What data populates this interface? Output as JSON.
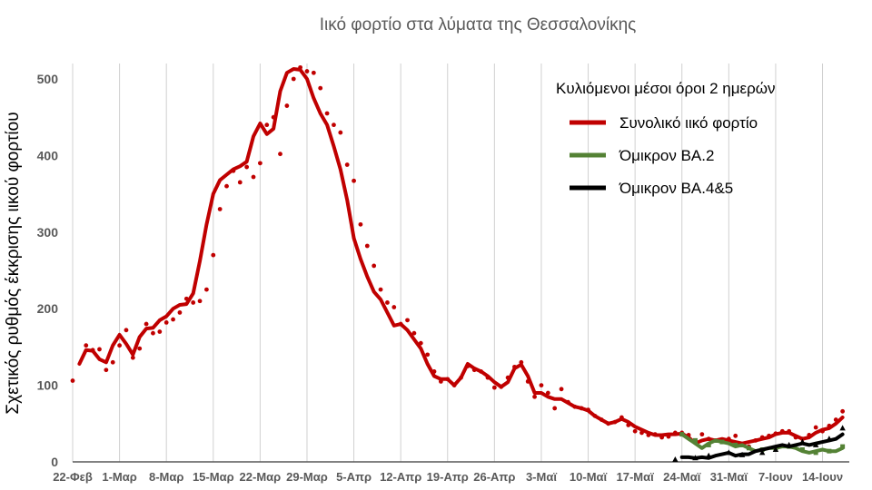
{
  "chart_data": {
    "type": "line",
    "title": "Ιικό φορτίο στα λύματα της Θεσσαλονίκης",
    "ylabel": "Σχετικός ρυθμός έκκρισης ιικού φορτίου",
    "xlabel": "",
    "ylim": [
      0,
      500
    ],
    "yticks": [
      0,
      100,
      200,
      300,
      400,
      500
    ],
    "xlim": [
      "2022-02-22",
      "2022-06-18"
    ],
    "grid": "vertical",
    "xticks": [
      {
        "date": "2022-02-22",
        "label": "22-Φεβ"
      },
      {
        "date": "2022-03-01",
        "label": "1-Μαρ"
      },
      {
        "date": "2022-03-08",
        "label": "8-Μαρ"
      },
      {
        "date": "2022-03-15",
        "label": "15-Μαρ"
      },
      {
        "date": "2022-03-22",
        "label": "22-Μαρ"
      },
      {
        "date": "2022-03-29",
        "label": "29-Μαρ"
      },
      {
        "date": "2022-04-05",
        "label": "5-Απρ"
      },
      {
        "date": "2022-04-12",
        "label": "12-Απρ"
      },
      {
        "date": "2022-04-19",
        "label": "19-Απρ"
      },
      {
        "date": "2022-04-26",
        "label": "26-Απρ"
      },
      {
        "date": "2022-05-03",
        "label": "3-Μαϊ"
      },
      {
        "date": "2022-05-10",
        "label": "10-Μαϊ"
      },
      {
        "date": "2022-05-17",
        "label": "17-Μαϊ"
      },
      {
        "date": "2022-05-24",
        "label": "24-Μαϊ"
      },
      {
        "date": "2022-05-31",
        "label": "31-Μαϊ"
      },
      {
        "date": "2022-06-07",
        "label": "7-Ιουν"
      },
      {
        "date": "2022-06-14",
        "label": "14-Ιουν"
      }
    ],
    "legend_title": "Κυλιόμενοι μέσοι όροι 2 ημερών",
    "legend_position": "top-right",
    "series": [
      {
        "name": "Συνολικό ιικό φορτίο",
        "color": "#c00000",
        "dots_x": [
          "2022-02-22",
          "2022-02-24",
          "2022-02-25",
          "2022-02-26",
          "2022-02-27",
          "2022-02-28",
          "2022-03-01",
          "2022-03-02",
          "2022-03-03",
          "2022-03-04",
          "2022-03-05",
          "2022-03-06",
          "2022-03-07",
          "2022-03-08",
          "2022-03-09",
          "2022-03-10",
          "2022-03-11",
          "2022-03-12",
          "2022-03-13",
          "2022-03-14",
          "2022-03-15",
          "2022-03-16",
          "2022-03-17",
          "2022-03-18",
          "2022-03-19",
          "2022-03-20",
          "2022-03-21",
          "2022-03-22",
          "2022-03-23",
          "2022-03-24",
          "2022-03-25",
          "2022-03-26",
          "2022-03-27",
          "2022-03-28",
          "2022-03-29",
          "2022-03-30",
          "2022-03-31",
          "2022-04-01",
          "2022-04-02",
          "2022-04-03",
          "2022-04-04",
          "2022-04-05",
          "2022-04-06",
          "2022-04-07",
          "2022-04-08",
          "2022-04-09",
          "2022-04-10",
          "2022-04-11",
          "2022-04-12",
          "2022-04-13",
          "2022-04-14",
          "2022-04-15",
          "2022-04-16",
          "2022-04-17",
          "2022-04-18",
          "2022-04-19",
          "2022-04-20",
          "2022-04-21",
          "2022-04-22",
          "2022-04-23",
          "2022-04-24",
          "2022-04-25",
          "2022-04-26",
          "2022-04-27",
          "2022-04-28",
          "2022-04-29",
          "2022-04-30",
          "2022-05-01",
          "2022-05-02",
          "2022-05-03",
          "2022-05-04",
          "2022-05-05",
          "2022-05-06",
          "2022-05-07",
          "2022-05-08",
          "2022-05-09",
          "2022-05-10",
          "2022-05-11",
          "2022-05-12",
          "2022-05-13",
          "2022-05-14",
          "2022-05-15",
          "2022-05-16",
          "2022-05-17",
          "2022-05-18",
          "2022-05-19",
          "2022-05-20",
          "2022-05-21",
          "2022-05-22",
          "2022-05-23",
          "2022-05-24",
          "2022-05-25",
          "2022-05-26",
          "2022-05-27",
          "2022-05-28",
          "2022-05-29",
          "2022-05-30",
          "2022-05-31",
          "2022-06-01",
          "2022-06-02",
          "2022-06-03",
          "2022-06-04",
          "2022-06-05",
          "2022-06-06",
          "2022-06-07",
          "2022-06-08",
          "2022-06-09",
          "2022-06-10",
          "2022-06-11",
          "2022-06-12",
          "2022-06-13",
          "2022-06-14",
          "2022-06-15",
          "2022-06-16",
          "2022-06-17"
        ],
        "dots_y": [
          106,
          152,
          146,
          147,
          120,
          130,
          152,
          172,
          136,
          148,
          180,
          168,
          170,
          182,
          186,
          195,
          213,
          208,
          210,
          225,
          270,
          330,
          360,
          380,
          365,
          385,
          372,
          390,
          440,
          450,
          402,
          465,
          500,
          515,
          510,
          508,
          488,
          455,
          440,
          430,
          388,
          367,
          310,
          282,
          256,
          225,
          208,
          202,
          180,
          185,
          168,
          155,
          140,
          118,
          105,
          108,
          100,
          110,
          125,
          120,
          118,
          110,
          97,
          98,
          110,
          124,
          130,
          105,
          85,
          100,
          90,
          70,
          95,
          78,
          72,
          70,
          68,
          60,
          55,
          50,
          52,
          58,
          48,
          40,
          38,
          35,
          36,
          32,
          33,
          38,
          38,
          35,
          28,
          36,
          30,
          28,
          26,
          30,
          34,
          22,
          20,
          28,
          32,
          34,
          37,
          40,
          40,
          32,
          30,
          35,
          45,
          40,
          47,
          55,
          66
        ],
        "line_x": [
          "2022-02-23",
          "2022-02-24",
          "2022-02-25",
          "2022-02-26",
          "2022-02-27",
          "2022-02-28",
          "2022-03-01",
          "2022-03-02",
          "2022-03-03",
          "2022-03-04",
          "2022-03-05",
          "2022-03-06",
          "2022-03-07",
          "2022-03-08",
          "2022-03-09",
          "2022-03-10",
          "2022-03-11",
          "2022-03-12",
          "2022-03-13",
          "2022-03-14",
          "2022-03-15",
          "2022-03-16",
          "2022-03-17",
          "2022-03-18",
          "2022-03-19",
          "2022-03-20",
          "2022-03-21",
          "2022-03-22",
          "2022-03-23",
          "2022-03-24",
          "2022-03-25",
          "2022-03-26",
          "2022-03-27",
          "2022-03-28",
          "2022-03-29",
          "2022-03-30",
          "2022-03-31",
          "2022-04-01",
          "2022-04-02",
          "2022-04-03",
          "2022-04-04",
          "2022-04-05",
          "2022-04-06",
          "2022-04-07",
          "2022-04-08",
          "2022-04-09",
          "2022-04-10",
          "2022-04-11",
          "2022-04-12",
          "2022-04-13",
          "2022-04-14",
          "2022-04-15",
          "2022-04-16",
          "2022-04-17",
          "2022-04-18",
          "2022-04-19",
          "2022-04-20",
          "2022-04-21",
          "2022-04-22",
          "2022-04-23",
          "2022-04-24",
          "2022-04-25",
          "2022-04-26",
          "2022-04-27",
          "2022-04-28",
          "2022-04-29",
          "2022-04-30",
          "2022-05-01",
          "2022-05-02",
          "2022-05-03",
          "2022-05-04",
          "2022-05-05",
          "2022-05-06",
          "2022-05-07",
          "2022-05-08",
          "2022-05-09",
          "2022-05-10",
          "2022-05-11",
          "2022-05-12",
          "2022-05-13",
          "2022-05-14",
          "2022-05-15",
          "2022-05-16",
          "2022-05-17",
          "2022-05-18",
          "2022-05-19",
          "2022-05-20",
          "2022-05-21",
          "2022-05-22",
          "2022-05-23",
          "2022-05-24",
          "2022-05-25",
          "2022-05-26",
          "2022-05-27",
          "2022-05-28",
          "2022-05-29",
          "2022-05-30",
          "2022-05-31",
          "2022-06-01",
          "2022-06-02",
          "2022-06-03",
          "2022-06-04",
          "2022-06-05",
          "2022-06-06",
          "2022-06-07",
          "2022-06-08",
          "2022-06-09",
          "2022-06-10",
          "2022-06-11",
          "2022-06-12",
          "2022-06-13",
          "2022-06-14",
          "2022-06-15",
          "2022-06-16",
          "2022-06-17"
        ],
        "line_y": [
          128,
          146,
          145,
          134,
          130,
          152,
          166,
          154,
          140,
          163,
          174,
          175,
          185,
          190,
          200,
          205,
          206,
          220,
          262,
          310,
          350,
          368,
          375,
          382,
          386,
          392,
          425,
          442,
          428,
          435,
          484,
          508,
          513,
          512,
          500,
          475,
          455,
          440,
          412,
          382,
          342,
          292,
          265,
          242,
          222,
          212,
          195,
          178,
          180,
          172,
          160,
          148,
          128,
          112,
          108,
          108,
          100,
          110,
          128,
          122,
          118,
          112,
          104,
          98,
          104,
          122,
          127,
          112,
          90,
          90,
          85,
          82,
          82,
          77,
          72,
          70,
          67,
          60,
          55,
          50,
          52,
          56,
          52,
          46,
          42,
          38,
          35,
          35,
          36,
          36,
          37,
          32,
          24,
          28,
          30,
          28,
          30,
          28,
          26,
          24,
          26,
          28,
          30,
          32,
          36,
          38,
          38,
          34,
          30,
          32,
          38,
          42,
          44,
          50,
          58
        ]
      },
      {
        "name": "Όμικρον ΒΑ.2",
        "color": "#548235",
        "dots_x": [
          "2022-05-24",
          "2022-05-26",
          "2022-05-28",
          "2022-05-30",
          "2022-06-01",
          "2022-06-03",
          "2022-06-05",
          "2022-06-07",
          "2022-06-09",
          "2022-06-11",
          "2022-06-13",
          "2022-06-15",
          "2022-06-17"
        ],
        "dots_y": [
          36,
          28,
          22,
          26,
          22,
          18,
          16,
          18,
          20,
          16,
          12,
          14,
          20
        ],
        "line_x": [
          "2022-05-24",
          "2022-05-25",
          "2022-05-26",
          "2022-05-27",
          "2022-05-28",
          "2022-05-29",
          "2022-05-30",
          "2022-05-31",
          "2022-06-01",
          "2022-06-02",
          "2022-06-03",
          "2022-06-04",
          "2022-06-05",
          "2022-06-06",
          "2022-06-07",
          "2022-06-08",
          "2022-06-09",
          "2022-06-10",
          "2022-06-11",
          "2022-06-12",
          "2022-06-13",
          "2022-06-14",
          "2022-06-15",
          "2022-06-16",
          "2022-06-17"
        ],
        "line_y": [
          36,
          30,
          24,
          18,
          24,
          28,
          26,
          24,
          20,
          22,
          18,
          14,
          16,
          18,
          18,
          20,
          20,
          18,
          14,
          12,
          14,
          16,
          14,
          14,
          18
        ]
      },
      {
        "name": "Όμικρον ΒΑ.4&5",
        "color": "#000000",
        "dots_x": [
          "2022-05-23",
          "2022-05-26",
          "2022-05-28",
          "2022-05-31",
          "2022-06-02",
          "2022-06-05",
          "2022-06-07",
          "2022-06-09",
          "2022-06-11",
          "2022-06-13",
          "2022-06-15",
          "2022-06-17"
        ],
        "dots_y": [
          3,
          5,
          8,
          12,
          9,
          12,
          16,
          22,
          26,
          22,
          30,
          44
        ],
        "line_x": [
          "2022-05-24",
          "2022-05-25",
          "2022-05-26",
          "2022-05-27",
          "2022-05-28",
          "2022-05-29",
          "2022-05-30",
          "2022-05-31",
          "2022-06-01",
          "2022-06-02",
          "2022-06-03",
          "2022-06-04",
          "2022-06-05",
          "2022-06-06",
          "2022-06-07",
          "2022-06-08",
          "2022-06-09",
          "2022-06-10",
          "2022-06-11",
          "2022-06-12",
          "2022-06-13",
          "2022-06-14",
          "2022-06-15",
          "2022-06-16",
          "2022-06-17"
        ],
        "line_y": [
          6,
          6,
          5,
          6,
          5,
          8,
          10,
          12,
          8,
          10,
          10,
          14,
          16,
          18,
          20,
          22,
          20,
          22,
          24,
          22,
          24,
          26,
          28,
          30,
          36
        ]
      }
    ]
  }
}
